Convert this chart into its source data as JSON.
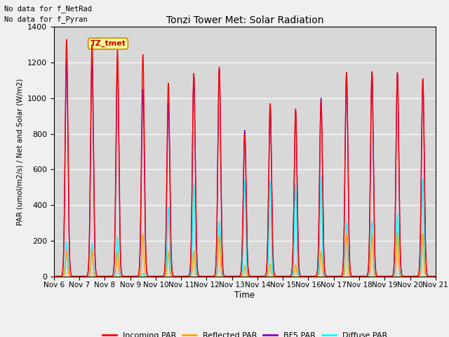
{
  "title": "Tonzi Tower Met: Solar Radiation",
  "ylabel": "PAR (umol/m2/s) / Net and Solar (W/m2)",
  "xlabel": "Time",
  "ylim": [
    0,
    1400
  ],
  "plot_bg_color": "#d8d8d8",
  "fig_bg_color": "#f0f0f0",
  "annotations": [
    "No data for f_NetRad",
    "No data for f_Pyran"
  ],
  "box_label": "TZ_tmet",
  "series": {
    "incoming_par": {
      "label": "Incoming PAR",
      "color": "#ff0000"
    },
    "reflected_par": {
      "label": "Reflected PAR",
      "color": "#ffa500"
    },
    "bf5_par": {
      "label": "BF5 PAR",
      "color": "#8800cc"
    },
    "diffuse_par": {
      "label": "Diffuse PAR",
      "color": "#00ffff"
    }
  },
  "day_peaks": {
    "incoming": [
      1330,
      1300,
      1270,
      1245,
      1085,
      1140,
      1175,
      800,
      970,
      940,
      980,
      1145,
      1150,
      1145,
      1110
    ],
    "reflected": [
      140,
      150,
      140,
      240,
      140,
      140,
      230,
      60,
      70,
      65,
      140,
      235,
      235,
      245,
      240
    ],
    "bf5": [
      1220,
      1205,
      1200,
      1050,
      980,
      1130,
      1165,
      820,
      950,
      930,
      1000,
      1140,
      1145,
      1140,
      1100
    ],
    "diffuse": [
      195,
      185,
      220,
      15,
      390,
      520,
      310,
      540,
      530,
      520,
      560,
      300,
      310,
      350,
      550
    ]
  },
  "n_days": 15,
  "xtick_labels": [
    "Nov 6",
    "Nov 7",
    "Nov 8",
    "Nov 9",
    "Nov 10",
    "Nov 11",
    "Nov 12",
    "Nov 13",
    "Nov 14",
    "Nov 15",
    "Nov 16",
    "Nov 17",
    "Nov 18",
    "Nov 19",
    "Nov 20",
    "Nov 21"
  ],
  "ytick_labels": [
    "0",
    "200",
    "400",
    "600",
    "800",
    "1000",
    "1200",
    "1400"
  ],
  "grid_color": "#ffffff",
  "lw": 1.0,
  "sigma_incoming": 0.055,
  "sigma_reflected": 0.038,
  "sigma_bf5": 0.055,
  "sigma_diffuse": 0.042
}
